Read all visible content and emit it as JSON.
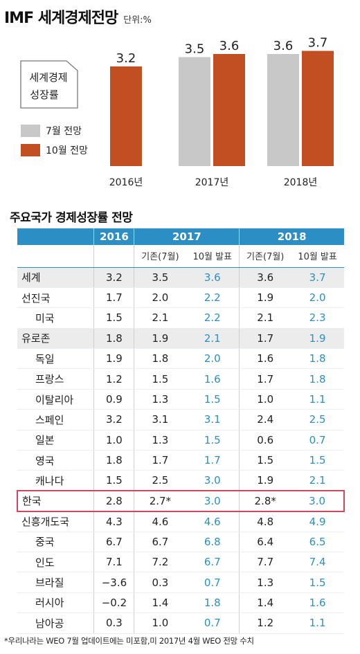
{
  "header": {
    "title": "IMF 세계경제전망",
    "unit": "단위:%"
  },
  "colors": {
    "jul": "#c8c8c8",
    "oct": "#c14f22",
    "accent": "#2b8ec5",
    "korea_border": "#d2445a"
  },
  "chart_data": {
    "type": "bar",
    "categories": [
      "2016년",
      "2017년",
      "2018년"
    ],
    "series": [
      {
        "name": "7월 전망",
        "values": [
          null,
          3.5,
          3.6
        ]
      },
      {
        "name": "10월 전망",
        "values": [
          3.2,
          3.6,
          3.7
        ]
      }
    ],
    "ylim": [
      0,
      4.0
    ],
    "callout": [
      "세계경제",
      "성장률"
    ],
    "legend": [
      "7월 전망",
      "10월 전망"
    ]
  },
  "table": {
    "section_title": "주요국가 경제성장률 전망",
    "years": [
      "2016",
      "2017",
      "2018"
    ],
    "sub_headers": [
      "기존(7월)",
      "10월 발표",
      "기존(7월)",
      "10월 발표"
    ],
    "rows": [
      {
        "country": "세계",
        "v2016": "3.2",
        "j17": "3.5",
        "o17": "3.6",
        "j18": "3.6",
        "o18": "3.7",
        "indent": false,
        "shade": true
      },
      {
        "country": "선진국",
        "v2016": "1.7",
        "j17": "2.0",
        "o17": "2.2",
        "j18": "1.9",
        "o18": "2.0",
        "indent": false,
        "shade": false
      },
      {
        "country": "미국",
        "v2016": "1.5",
        "j17": "2.1",
        "o17": "2.2",
        "j18": "2.1",
        "o18": "2.3",
        "indent": true,
        "shade": false
      },
      {
        "country": "유로존",
        "v2016": "1.8",
        "j17": "1.9",
        "o17": "2.1",
        "j18": "1.7",
        "o18": "1.9",
        "indent": false,
        "shade": true
      },
      {
        "country": "독일",
        "v2016": "1.9",
        "j17": "1.8",
        "o17": "2.0",
        "j18": "1.6",
        "o18": "1.8",
        "indent": true,
        "shade": false
      },
      {
        "country": "프랑스",
        "v2016": "1.2",
        "j17": "1.5",
        "o17": "1.6",
        "j18": "1.7",
        "o18": "1.8",
        "indent": true,
        "shade": false
      },
      {
        "country": "이탈리아",
        "v2016": "0.9",
        "j17": "1.3",
        "o17": "1.5",
        "j18": "1.0",
        "o18": "1.1",
        "indent": true,
        "shade": false
      },
      {
        "country": "스페인",
        "v2016": "3.2",
        "j17": "3.1",
        "o17": "3.1",
        "j18": "2.4",
        "o18": "2.5",
        "indent": true,
        "shade": false
      },
      {
        "country": "일본",
        "v2016": "1.0",
        "j17": "1.3",
        "o17": "1.5",
        "j18": "0.6",
        "o18": "0.7",
        "indent": true,
        "shade": false
      },
      {
        "country": "영국",
        "v2016": "1.8",
        "j17": "1.7",
        "o17": "1.7",
        "j18": "1.5",
        "o18": "1.5",
        "indent": true,
        "shade": false
      },
      {
        "country": "캐나다",
        "v2016": "1.5",
        "j17": "2.5",
        "o17": "3.0",
        "j18": "1.9",
        "o18": "2.1",
        "indent": true,
        "shade": false
      },
      {
        "country": "한국",
        "v2016": "2.8",
        "j17": "2.7*",
        "o17": "3.0",
        "j18": "2.8*",
        "o18": "3.0",
        "indent": false,
        "shade": false,
        "korea": true
      },
      {
        "country": "신흥개도국",
        "v2016": "4.3",
        "j17": "4.6",
        "o17": "4.6",
        "j18": "4.8",
        "o18": "4.9",
        "indent": false,
        "shade": false
      },
      {
        "country": "중국",
        "v2016": "6.7",
        "j17": "6.7",
        "o17": "6.8",
        "j18": "6.4",
        "o18": "6.5",
        "indent": true,
        "shade": false
      },
      {
        "country": "인도",
        "v2016": "7.1",
        "j17": "7.2",
        "o17": "6.7",
        "j18": "7.7",
        "o18": "7.4",
        "indent": true,
        "shade": false
      },
      {
        "country": "브라질",
        "v2016": "−3.6",
        "j17": "0.3",
        "o17": "0.7",
        "j18": "1.3",
        "o18": "1.5",
        "indent": true,
        "shade": false
      },
      {
        "country": "러시아",
        "v2016": "−0.2",
        "j17": "1.4",
        "o17": "1.8",
        "j18": "1.4",
        "o18": "1.6",
        "indent": true,
        "shade": false
      },
      {
        "country": "남아공",
        "v2016": "0.3",
        "j17": "1.0",
        "o17": "0.7",
        "j18": "1.2",
        "o18": "1.1",
        "indent": true,
        "shade": false
      }
    ]
  },
  "footnote": "*우리나라는 WEO 7월 업데이트에는 미포함,미 2017년 4월 WEO 전망 수치"
}
